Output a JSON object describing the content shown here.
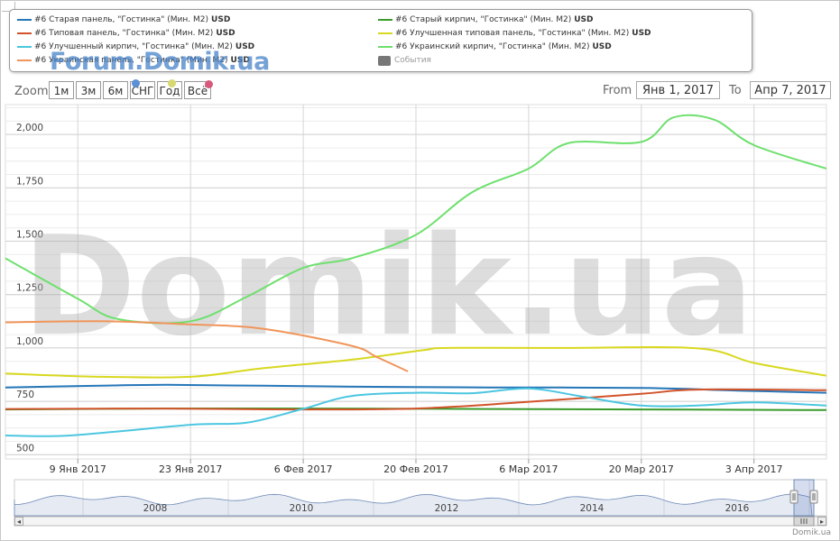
{
  "legend": [
    {
      "label": "#6 Старая панель, \"Гостинка\" (Мин. М2)",
      "unit": "USD",
      "color": "#2576b8"
    },
    {
      "label": "#6 Старый кирпич, \"Гостинка\" (Мин. М2)",
      "unit": "USD",
      "color": "#3a9a2a"
    },
    {
      "label": "#6 Типовая панель, \"Гостинка\" (Мин. М2)",
      "unit": "USD",
      "color": "#d2532a"
    },
    {
      "label": "#6 Улучшенная типовая панель, \"Гостинка\" (Мин. М2)",
      "unit": "USD",
      "color": "#d8d820"
    },
    {
      "label": "#6 Улучшенный кирпич, \"Гостинка\" (Мин. М2)",
      "unit": "USD",
      "color": "#4cc6e0"
    },
    {
      "label": "#6 Украинский кирпич, \"Гостинка\" (Мин. М2)",
      "unit": "USD",
      "color": "#6ee06e"
    },
    {
      "label": "#6 Украинская панель, \"Гостинка\" (Мин. М2)",
      "unit": "USD",
      "color": "#f0955a"
    },
    {
      "label": "События",
      "unit": "",
      "color": "#777777",
      "muted": true
    }
  ],
  "brand_overlay": "Forum.Domik.ua",
  "watermark": "Domik.ua",
  "toolbar": {
    "zoom_label": "Zoom",
    "zoom_buttons": [
      "1м",
      "3м",
      "6м",
      "СНГ",
      "Год",
      "Всё"
    ],
    "from_label": "From",
    "from_value": "Янв 1, 2017",
    "to_label": "To",
    "to_value": "Апр 7, 2017",
    "dot_colors": [
      "#5b8fd6",
      "#d8d870",
      "#d85a7a"
    ]
  },
  "credit": "Domik.ua",
  "chart_data": {
    "type": "line",
    "title": "",
    "xlabel": "",
    "ylabel": "",
    "ylim": [
      480,
      2140
    ],
    "xlim": [
      "2016-12-31",
      "2017-04-12"
    ],
    "y_ticks": [
      500,
      750,
      1000,
      1250,
      1500,
      1750,
      2000
    ],
    "y_tick_labels": [
      "500",
      "750",
      "1,000",
      "1,250",
      "1,500",
      "1,750",
      "2,000"
    ],
    "x_ticks": [
      "2017-01-09",
      "2017-01-23",
      "2017-02-06",
      "2017-02-20",
      "2017-03-06",
      "2017-03-20",
      "2017-04-03"
    ],
    "x_tick_labels": [
      "9 Янв 2017",
      "23 Янв 2017",
      "6 Фев 2017",
      "20 Фев 2017",
      "6 Мар 2017",
      "20 Мар 2017",
      "3 Апр 2017"
    ],
    "grid": true,
    "legend_position": "top",
    "series": [
      {
        "name": "#6 Старая панель, \"Гостинка\" (Мин. М2)",
        "color": "#2576b8",
        "x": [
          "2016-12-31",
          "2017-01-10",
          "2017-01-20",
          "2017-02-01",
          "2017-02-15",
          "2017-03-01",
          "2017-03-20",
          "2017-04-01",
          "2017-04-12"
        ],
        "y": [
          815,
          822,
          827,
          823,
          818,
          815,
          813,
          800,
          790
        ]
      },
      {
        "name": "#6 Старый кирпич, \"Гостинка\" (Мин. М2)",
        "color": "#3a9a2a",
        "x": [
          "2016-12-31",
          "2017-01-20",
          "2017-02-10",
          "2017-03-01",
          "2017-03-20",
          "2017-04-12"
        ],
        "y": [
          712,
          716,
          716,
          714,
          712,
          709
        ]
      },
      {
        "name": "#6 Типовая панель, \"Гостинка\" (Мин. М2)",
        "color": "#d2532a",
        "x": [
          "2016-12-31",
          "2017-01-20",
          "2017-02-05",
          "2017-02-20",
          "2017-03-05",
          "2017-03-20",
          "2017-03-27",
          "2017-04-12"
        ],
        "y": [
          714,
          716,
          712,
          716,
          745,
          785,
          805,
          802
        ]
      },
      {
        "name": "#6 Улучшенная типовая панель, \"Гостинка\" (Мин. М2)",
        "color": "#d8d820",
        "x": [
          "2016-12-31",
          "2017-01-12",
          "2017-01-23",
          "2017-02-01",
          "2017-02-12",
          "2017-02-21",
          "2017-02-24",
          "2017-03-10",
          "2017-03-27",
          "2017-04-03",
          "2017-04-12"
        ],
        "y": [
          880,
          865,
          865,
          905,
          945,
          990,
          1000,
          1000,
          998,
          930,
          870
        ]
      },
      {
        "name": "#6 Улучшенный кирпич, \"Гостинка\" (Мин. М2)",
        "color": "#4cc6e0",
        "x": [
          "2016-12-31",
          "2017-01-08",
          "2017-01-23",
          "2017-01-30",
          "2017-02-06",
          "2017-02-12",
          "2017-02-20",
          "2017-02-27",
          "2017-03-06",
          "2017-03-13",
          "2017-03-20",
          "2017-03-27",
          "2017-04-03",
          "2017-04-12"
        ],
        "y": [
          590,
          590,
          640,
          650,
          715,
          775,
          790,
          788,
          810,
          770,
          730,
          730,
          745,
          730
        ]
      },
      {
        "name": "#6 Украинский кирпич, \"Гостинка\" (Мин. М2)",
        "color": "#6ee06e",
        "x": [
          "2016-12-31",
          "2017-01-09",
          "2017-01-14",
          "2017-01-23",
          "2017-01-30",
          "2017-02-06",
          "2017-02-12",
          "2017-02-20",
          "2017-02-27",
          "2017-03-06",
          "2017-03-11",
          "2017-03-20",
          "2017-03-24",
          "2017-03-29",
          "2017-04-03",
          "2017-04-12"
        ],
        "y": [
          1420,
          1230,
          1135,
          1125,
          1240,
          1375,
          1420,
          1530,
          1730,
          1840,
          1960,
          1965,
          2080,
          2070,
          1950,
          1840
        ]
      },
      {
        "name": "#6 Украинская панель, \"Гостинка\" (Мин. М2)",
        "color": "#f0955a",
        "x": [
          "2016-12-31",
          "2017-01-12",
          "2017-01-23",
          "2017-02-01",
          "2017-02-12",
          "2017-02-15",
          "2017-02-19"
        ],
        "y": [
          1120,
          1125,
          1110,
          1090,
          1010,
          960,
          890
        ]
      }
    ],
    "navigator": {
      "x_tick_labels": [
        "2008",
        "2010",
        "2012",
        "2014",
        "2016"
      ]
    }
  }
}
